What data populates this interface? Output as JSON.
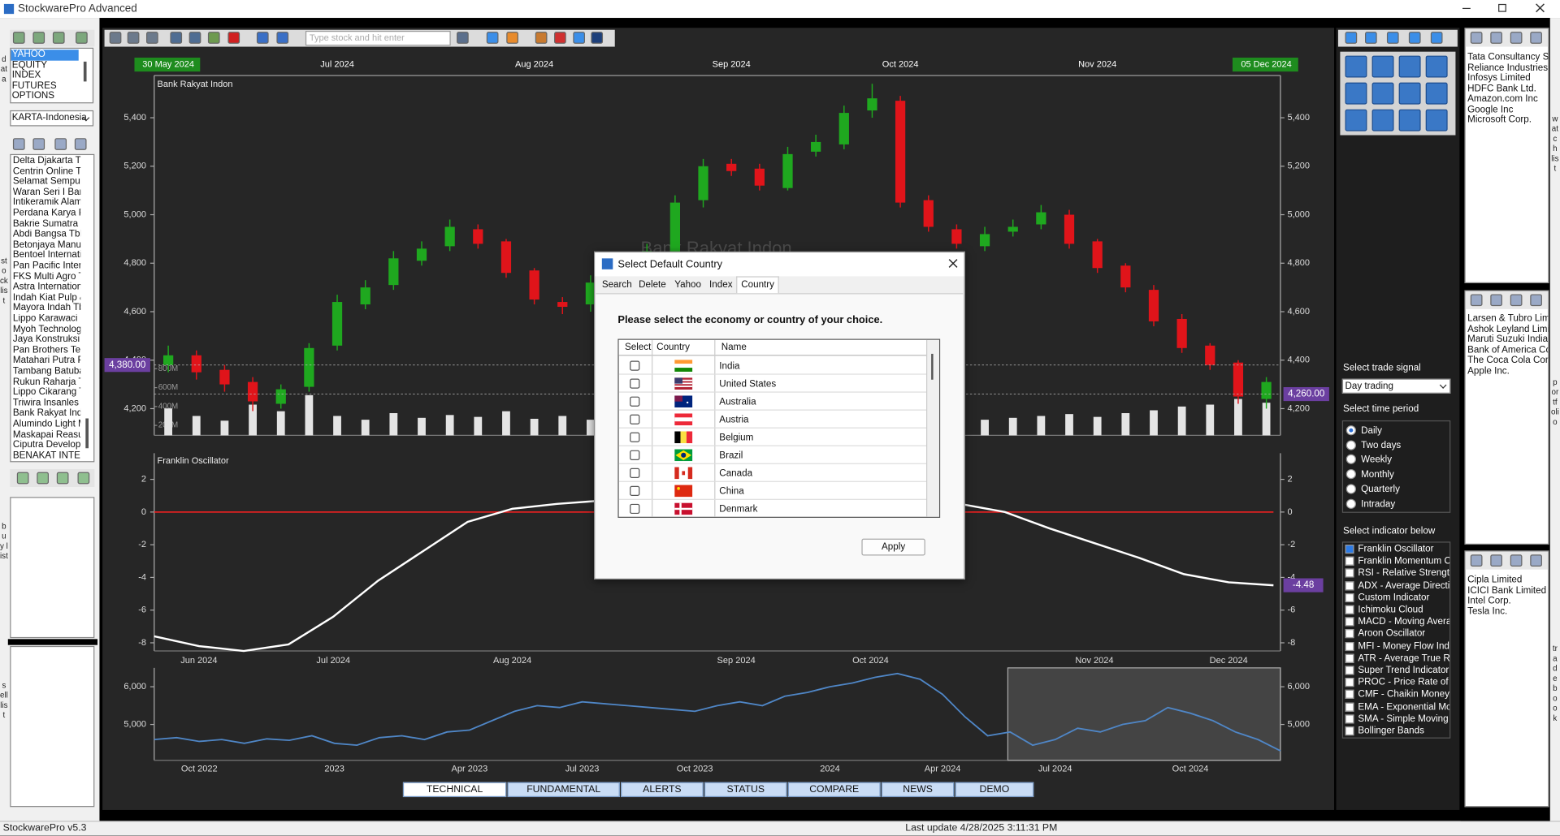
{
  "window": {
    "title": "StockwarePro Advanced"
  },
  "toolbar": {
    "search_placeholder": "Type stock and hit enter"
  },
  "side_labels": {
    "data": "data",
    "stock_list": "stock list",
    "buy_list": "buy list",
    "sell_list": "sell list",
    "watch_list": "watch list",
    "portfolio": "portfolio",
    "trade_book": "trade book"
  },
  "left_panel": {
    "sources": [
      {
        "label": "YAHOO",
        "selected": true
      },
      {
        "label": "EQUITY"
      },
      {
        "label": "INDEX"
      },
      {
        "label": "FUTURES"
      },
      {
        "label": "OPTIONS"
      }
    ],
    "market": "KARTA-Indonesia",
    "stocks": [
      "Delta Djakarta T",
      "Centrin Online T",
      "Selamat Sempur",
      "Waran Seri I Bar",
      "Intikeramik Alam",
      "Perdana Karya P",
      "Bakrie Sumatra I",
      "Abdi Bangsa Tbk",
      "Betonjaya Manu",
      "Bentoel Internati",
      "Pan Pacific Inter",
      "FKS Multi Agro T",
      "Astra Internation",
      "Indah Kiat Pulp &",
      "Mayora Indah Tb",
      "Lippo Karawaci",
      "Myoh Technolog",
      "Jaya Konstruksi",
      "Pan Brothers Te",
      "Matahari Putra P",
      "Tambang Batuba",
      "Rukun Raharja T",
      "Lippo Cikarang T",
      "Triwira Insanles",
      "Bank Rakyat Ind",
      "Alumindo Light M",
      "Maskapai Reasu",
      "Ciputra Develop",
      "BENAKAT INTEG"
    ]
  },
  "chart_data": [
    {
      "type": "candlestick",
      "title": "Bank Rakyat Indon",
      "categories": [
        "30 May 2024",
        null,
        null,
        null,
        null,
        null,
        "Jul 2024",
        null,
        null,
        null,
        null,
        null,
        null,
        "Aug 2024",
        null,
        null,
        null,
        null,
        null,
        null,
        "Sep 2024",
        null,
        null,
        null,
        null,
        null,
        "Oct 2024",
        null,
        null,
        null,
        null,
        null,
        null,
        "Nov 2024",
        null,
        null,
        null,
        null,
        null,
        "05 Dec 2024"
      ],
      "open": [
        4380,
        4420,
        4360,
        4310,
        4220,
        4290,
        4460,
        4630,
        4710,
        4810,
        4870,
        4940,
        4890,
        4770,
        4640,
        4630,
        4710,
        4790,
        4840,
        5060,
        5210,
        5190,
        5110,
        5260,
        5290,
        5430,
        5470,
        5060,
        4940,
        4870,
        4930,
        4960,
        5000,
        4890,
        4790,
        4690,
        4570,
        4460,
        4390,
        4240
      ],
      "high": [
        4460,
        4440,
        4380,
        4330,
        4300,
        4470,
        4670,
        4730,
        4850,
        4890,
        4980,
        4960,
        4900,
        4780,
        4660,
        4750,
        4810,
        4880,
        5080,
        5230,
        5230,
        5210,
        5280,
        5330,
        5450,
        5540,
        5490,
        5080,
        4960,
        4950,
        4980,
        5040,
        5020,
        4900,
        4800,
        4710,
        4590,
        4470,
        4400,
        4330
      ],
      "low": [
        4350,
        4320,
        4270,
        4190,
        4200,
        4270,
        4440,
        4610,
        4690,
        4790,
        4850,
        4860,
        4740,
        4630,
        4590,
        4600,
        4700,
        4760,
        4820,
        5030,
        5160,
        5100,
        5100,
        5240,
        5270,
        5400,
        5030,
        4930,
        4860,
        4850,
        4910,
        4940,
        4860,
        4760,
        4680,
        4540,
        4430,
        4360,
        4220,
        4200
      ],
      "close": [
        4420,
        4350,
        4300,
        4230,
        4280,
        4450,
        4640,
        4700,
        4820,
        4860,
        4950,
        4880,
        4760,
        4650,
        4620,
        4720,
        4780,
        4850,
        5050,
        5200,
        5180,
        5120,
        5250,
        5300,
        5420,
        5480,
        5050,
        4950,
        4880,
        4920,
        4950,
        5010,
        4880,
        4780,
        4700,
        4560,
        4450,
        4380,
        4250,
        4310
      ],
      "up_color": "#1fa81f",
      "down_color": "#e0141a",
      "ylim": [
        4090,
        5570
      ],
      "yticks": [
        {
          "value": 4200,
          "label": "4,200"
        },
        {
          "value": 4400,
          "label": "4,400"
        },
        {
          "value": 4600,
          "label": "4,600"
        },
        {
          "value": 4800,
          "label": "4,800"
        },
        {
          "value": 5000,
          "label": "5,000"
        },
        {
          "value": 5200,
          "label": "5,200"
        },
        {
          "value": 5400,
          "label": "5,400"
        }
      ],
      "price_labels": [
        {
          "value": 4380,
          "label": "4,380.00",
          "side": "left"
        },
        {
          "value": 4260,
          "label": "4,260.00",
          "side": "right"
        }
      ],
      "volume": {
        "values": [
          380,
          300,
          250,
          420,
          350,
          520,
          300,
          260,
          330,
          280,
          310,
          290,
          350,
          270,
          300,
          260,
          250,
          280,
          420,
          380,
          300,
          280,
          330,
          360,
          310,
          450,
          520,
          380,
          300,
          260,
          280,
          300,
          320,
          290,
          330,
          360,
          400,
          420,
          480,
          440
        ],
        "color": "#e4e4e4",
        "ylim": [
          95,
          3895
        ],
        "yticks": [
          {
            "value": 200,
            "label": "200M"
          },
          {
            "value": 400,
            "label": "400M"
          },
          {
            "value": 600,
            "label": "600M"
          },
          {
            "value": 800,
            "label": "800M"
          }
        ]
      }
    },
    {
      "type": "line",
      "title": "Franklin Oscillator",
      "categories": [
        null,
        "Jun 2024",
        null,
        null,
        "Jul 2024",
        null,
        null,
        null,
        "Aug 2024",
        null,
        null,
        null,
        null,
        "Sep 2024",
        null,
        null,
        "Oct 2024",
        null,
        null,
        null,
        null,
        "Nov 2024",
        null,
        null,
        "Dec 2024",
        null
      ],
      "values": [
        -7.6,
        -8.2,
        -8.5,
        -8.1,
        -6.4,
        -4.2,
        -2.4,
        -0.6,
        0.2,
        0.5,
        0.7,
        1.0,
        1.3,
        1.5,
        1.6,
        1.5,
        1.2,
        0.9,
        0.5,
        0.0,
        -1.0,
        -1.9,
        -2.8,
        -3.8,
        -4.3,
        -4.48
      ],
      "color": "#ffffff",
      "zero_line_color": "#e02020",
      "ylim": [
        -8.5,
        3.6
      ],
      "yticks": [
        2,
        0,
        -2,
        -4,
        -6,
        -8
      ],
      "last_value": -4.48
    },
    {
      "type": "line",
      "categories": [
        null,
        null,
        "Oct 2022",
        null,
        null,
        null,
        null,
        null,
        "2023",
        null,
        null,
        null,
        null,
        null,
        "Apr 2023",
        null,
        null,
        null,
        null,
        "Jul 2023",
        null,
        null,
        null,
        null,
        "Oct 2023",
        null,
        null,
        null,
        null,
        null,
        "2024",
        null,
        null,
        null,
        null,
        "Apr 2024",
        null,
        null,
        null,
        null,
        "Jul 2024",
        null,
        null,
        null,
        null,
        null,
        "Oct 2024",
        null,
        null,
        null,
        null
      ],
      "values": [
        4600,
        4650,
        4550,
        4600,
        4500,
        4620,
        4580,
        4700,
        4500,
        4450,
        4650,
        4700,
        4600,
        4800,
        4850,
        5100,
        5350,
        5500,
        5450,
        5600,
        5550,
        5500,
        5450,
        5400,
        5350,
        5500,
        5600,
        5500,
        5750,
        5850,
        6000,
        6100,
        6250,
        6350,
        6200,
        5800,
        5200,
        4700,
        4800,
        4450,
        4600,
        4900,
        4800,
        5000,
        5100,
        5450,
        5300,
        5100,
        4800,
        4600,
        4300
      ],
      "color": "#4f86c6",
      "ylim": [
        4050,
        6500
      ],
      "yticks": [
        {
          "value": 5000,
          "label": "5,000"
        },
        {
          "value": 6000,
          "label": "6,000"
        }
      ]
    }
  ],
  "bottom_tabs": [
    {
      "label": "TECHNICAL",
      "active": true
    },
    {
      "label": "FUNDAMENTAL"
    },
    {
      "label": "ALERTS"
    },
    {
      "label": "STATUS"
    },
    {
      "label": "COMPARE"
    },
    {
      "label": "NEWS"
    },
    {
      "label": "DEMO"
    }
  ],
  "dialog": {
    "title": "Select Default Country",
    "tabs": [
      {
        "label": "Search"
      },
      {
        "label": "Delete"
      },
      {
        "label": "Yahoo"
      },
      {
        "label": "Index"
      },
      {
        "label": "Country",
        "active": true
      }
    ],
    "heading": "Please select the economy or country of your choice.",
    "columns": [
      "Select",
      "Country",
      "Name"
    ],
    "countries": [
      "India",
      "United States",
      "Australia",
      "Austria",
      "Belgium",
      "Brazil",
      "Canada",
      "China",
      "Denmark"
    ],
    "button": "Apply"
  },
  "right_panel": {
    "trade_signal_label": "Select trade signal",
    "trade_signal": "Day trading",
    "time_period_label": "Select time period",
    "time_periods": [
      {
        "label": "Daily",
        "checked": true
      },
      {
        "label": "Two days"
      },
      {
        "label": "Weekly"
      },
      {
        "label": "Monthly"
      },
      {
        "label": "Quarterly"
      },
      {
        "label": "Intraday"
      }
    ],
    "indicator_label": "Select indicator below",
    "indicators": [
      {
        "label": "Franklin Oscillator",
        "checked": true
      },
      {
        "label": "Franklin Momentum Osc"
      },
      {
        "label": "RSI - Relative Strength"
      },
      {
        "label": "ADX - Average Direction"
      },
      {
        "label": "Custom Indicator"
      },
      {
        "label": "Ichimoku Cloud"
      },
      {
        "label": "MACD - Moving Averag"
      },
      {
        "label": "Aroon Oscillator"
      },
      {
        "label": "MFI - Money Flow Index"
      },
      {
        "label": "ATR - Average True Ra"
      },
      {
        "label": "Super Trend Indicator"
      },
      {
        "label": "PROC - Price Rate of C"
      },
      {
        "label": "CMF - Chaikin Money Fl"
      },
      {
        "label": "EMA - Exponential Movi"
      },
      {
        "label": "SMA - Simple Moving Av"
      },
      {
        "label": "Bollinger Bands"
      }
    ]
  },
  "watch_list": [
    "Tata Consultancy Se",
    "Reliance Industries L",
    "Infosys Limited",
    "HDFC Bank Ltd.",
    "Amazon.com Inc",
    "Google Inc",
    "Microsoft Corp."
  ],
  "portfolio": [
    "Larsen & Tubro Limite",
    "Ashok Leyland Limite",
    "Maruti Suzuki India L",
    "Bank of America Cor",
    "The Coca Cola Comp",
    "Apple Inc."
  ],
  "trade_book": [
    "Cipla Limited",
    "ICICI Bank Limited",
    "Intel Corp.",
    "Tesla Inc."
  ],
  "status": {
    "version": "StockwarePro v5.3",
    "last_update": "Last update 4/28/2025 3:11:31 PM"
  }
}
